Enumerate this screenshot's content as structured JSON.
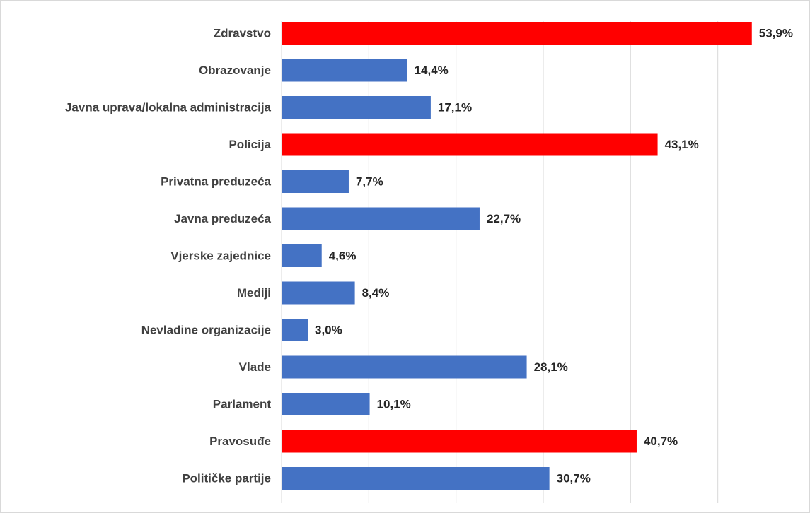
{
  "chart_data": {
    "type": "hbar",
    "categories": [
      "Zdravstvo",
      "Obrazovanje",
      "Javna uprava/lokalna administracija",
      "Policija",
      "Privatna preduzeća",
      "Javna preduzeća",
      "Vjerske zajednice",
      "Mediji",
      "Nevladine organizacije",
      "Vlade",
      "Parlament",
      "Pravosuđe",
      "Političke partije"
    ],
    "values": [
      53.9,
      14.4,
      17.1,
      43.1,
      7.7,
      22.7,
      4.6,
      8.4,
      3.0,
      28.1,
      10.1,
      40.7,
      30.7
    ],
    "value_labels": [
      "53,9%",
      "14,4%",
      "17,1%",
      "43,1%",
      "7,7%",
      "22,7%",
      "4,6%",
      "8,4%",
      "3,0%",
      "28,1%",
      "10,1%",
      "40,7%",
      "30,7%"
    ],
    "colors": [
      "#ff0000",
      "#4472c4",
      "#4472c4",
      "#ff0000",
      "#4472c4",
      "#4472c4",
      "#4472c4",
      "#4472c4",
      "#4472c4",
      "#4472c4",
      "#4472c4",
      "#ff0000",
      "#4472c4"
    ],
    "xlim": [
      0,
      60
    ],
    "xticks": [
      0,
      10,
      20,
      30,
      40,
      50
    ],
    "grid": true
  }
}
